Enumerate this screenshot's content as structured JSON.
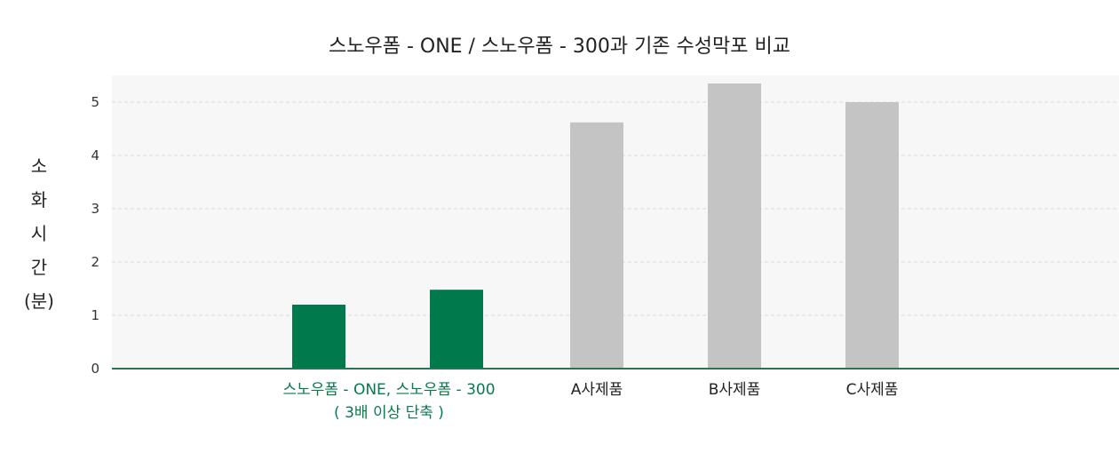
{
  "colors": {
    "highlight": "#007a4d",
    "other": "#c4c4c4",
    "plot_bg": "#f7f7f7",
    "grid": "#d9d9d9",
    "axis": "#1f7a53",
    "highlight_label": "#0a7a4c",
    "label": "#222222"
  },
  "chart_data": {
    "type": "bar",
    "title": "스노우폼 - ONE / 스노우폼 - 300과 기존 수성막포 비교",
    "ylabel_chars": [
      "소",
      "화",
      "시",
      "간",
      "(분)"
    ],
    "ylim": [
      0,
      5.5
    ],
    "yticks": [
      0,
      1,
      2,
      3,
      4,
      5
    ],
    "grid": true,
    "xlabels": [
      {
        "lines": [
          "스노우폼 - ONE, 스노우폼 - 300",
          "( 3배 이상 단축 )"
        ],
        "highlight": true
      },
      {
        "lines": [
          "A사제품"
        ],
        "highlight": false
      },
      {
        "lines": [
          "B사제품"
        ],
        "highlight": false
      },
      {
        "lines": [
          "C사제품"
        ],
        "highlight": false
      }
    ],
    "bars": [
      {
        "value": 1.2,
        "highlight": true
      },
      {
        "value": 1.48,
        "highlight": true
      },
      {
        "value": 4.62,
        "highlight": false
      },
      {
        "value": 5.35,
        "highlight": false
      },
      {
        "value": 5.0,
        "highlight": false
      }
    ]
  }
}
